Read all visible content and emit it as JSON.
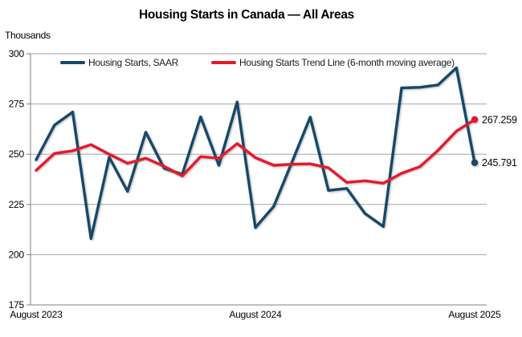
{
  "title": "Housing Starts in Canada — All Areas",
  "unit_label": "Thousands",
  "colors": {
    "saar": "#164869",
    "trend": "#e6192d",
    "gridline": "#a6a6a6",
    "axis": "#7f7f7f",
    "label_text": "#000000"
  },
  "legend": [
    {
      "key": "saar",
      "label": "Housing Starts, SAAR"
    },
    {
      "key": "trend",
      "label": "Housing Starts Trend Line (6-month moving average)"
    }
  ],
  "end_labels": {
    "trend": "267.259",
    "saar": "245.791"
  },
  "chart_data": {
    "type": "line",
    "title": "Housing Starts in Canada — All Areas",
    "ylabel": "Thousands",
    "grid": "horizontal",
    "legend_position": "top-inside",
    "ylim": [
      175,
      300
    ],
    "yticks": [
      300,
      275,
      250,
      225,
      200,
      175
    ],
    "x": [
      "Aug 2023",
      "Sep 2023",
      "Oct 2023",
      "Nov 2023",
      "Dec 2023",
      "Jan 2024",
      "Feb 2024",
      "Mar 2024",
      "Apr 2024",
      "May 2024",
      "Jun 2024",
      "Jul 2024",
      "Aug 2024",
      "Sep 2024",
      "Oct 2024",
      "Nov 2024",
      "Dec 2024",
      "Jan 2025",
      "Feb 2025",
      "Mar 2025",
      "Apr 2025",
      "May 2025",
      "Jun 2025",
      "Jul 2025",
      "Aug 2025"
    ],
    "xticks": [
      {
        "index": 0,
        "label": "August 2023"
      },
      {
        "index": 12,
        "label": "August 2024"
      },
      {
        "index": 24,
        "label": "August 2025"
      }
    ],
    "series": [
      {
        "name": "Housing Starts, SAAR",
        "key": "saar",
        "values": [
          247.3,
          264.5,
          271.0,
          208.0,
          248.5,
          231.5,
          261.0,
          243.0,
          240.0,
          268.6,
          244.5,
          276.0,
          213.5,
          224.0,
          246.0,
          268.5,
          232.0,
          233.0,
          220.5,
          214.0,
          283.0,
          283.3,
          284.5,
          293.0,
          245.791
        ]
      },
      {
        "name": "Housing Starts Trend Line (6-month moving average)",
        "key": "trend",
        "values": [
          242.0,
          250.4,
          251.7,
          254.8,
          250.0,
          245.5,
          248.0,
          244.0,
          239.2,
          248.8,
          248.0,
          255.3,
          248.3,
          244.5,
          245.0,
          245.2,
          243.2,
          236.0,
          236.8,
          235.6,
          240.5,
          243.8,
          252.0,
          261.5,
          267.259
        ]
      }
    ]
  }
}
